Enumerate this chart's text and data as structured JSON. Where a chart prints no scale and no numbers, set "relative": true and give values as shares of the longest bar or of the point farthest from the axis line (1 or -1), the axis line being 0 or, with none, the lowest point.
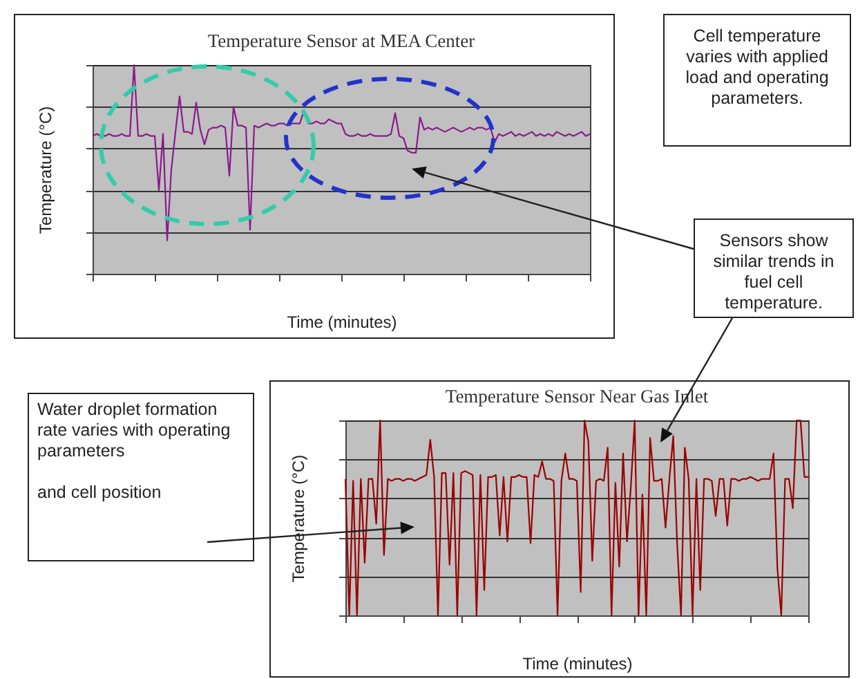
{
  "chart_data": [
    {
      "type": "line",
      "title": "Temperature Sensor at MEA Center",
      "xlabel": "Time (minutes)",
      "ylabel": "Temperature (°C)",
      "relative": true,
      "grid": "y",
      "tick_labels": false,
      "annotations": [
        "Cell temperature varies with applied load and operating parameters.",
        "Sensors show similar trends in fuel cell temperature."
      ],
      "categories": [
        null,
        null,
        null,
        null,
        null,
        null,
        null,
        null,
        null,
        null,
        null,
        null,
        null,
        null,
        null,
        null,
        null,
        null,
        null,
        null,
        null,
        null,
        null,
        null,
        null,
        null,
        null,
        null,
        null,
        null,
        null,
        null,
        null,
        null,
        null,
        null,
        null,
        null,
        null,
        null,
        null,
        null,
        null,
        null,
        null,
        null,
        null,
        null,
        null,
        null,
        null,
        null,
        null,
        null,
        null,
        null,
        null,
        null,
        null,
        null,
        null,
        null,
        null,
        null,
        null,
        null,
        null,
        null,
        null,
        null,
        null,
        null,
        null,
        null,
        null,
        null,
        null,
        null,
        null,
        null,
        null,
        null,
        null,
        null,
        null,
        null,
        null,
        null,
        null,
        null,
        null,
        null,
        null,
        null,
        null,
        null,
        null,
        null,
        null,
        null,
        null,
        null,
        null,
        null,
        null,
        null,
        null,
        null,
        null,
        null,
        null,
        null,
        null,
        null,
        null,
        null,
        null,
        null,
        null,
        null,
        null
      ],
      "series": [
        {
          "color": "#8b1a8b",
          "values": [
            0.66,
            0.67,
            0.66,
            0.66,
            0.67,
            0.66,
            0.66,
            0.67,
            0.66,
            0.66,
            1.0,
            0.66,
            0.66,
            0.67,
            0.66,
            0.66,
            0.4,
            0.67,
            0.16,
            0.5,
            0.68,
            0.85,
            0.68,
            0.68,
            0.67,
            0.82,
            0.69,
            0.62,
            0.69,
            0.7,
            0.7,
            0.71,
            0.7,
            0.47,
            0.8,
            0.71,
            0.71,
            0.7,
            0.21,
            0.71,
            0.7,
            0.71,
            0.72,
            0.71,
            0.71,
            0.72,
            0.72,
            0.71,
            0.72,
            0.72,
            0.72,
            0.78,
            0.72,
            0.72,
            0.73,
            0.72,
            0.72,
            0.74,
            0.73,
            0.72,
            0.72,
            0.67,
            0.66,
            0.66,
            0.67,
            0.66,
            0.66,
            0.67,
            0.66,
            0.66,
            0.66,
            0.66,
            0.67,
            0.77,
            0.66,
            0.65,
            0.59,
            0.58,
            0.58,
            0.75,
            0.69,
            0.7,
            0.69,
            0.7,
            0.69,
            0.68,
            0.69,
            0.7,
            0.69,
            0.68,
            0.69,
            0.7,
            0.69,
            0.7,
            0.7,
            0.69,
            0.7,
            0.63,
            0.67,
            0.66,
            0.67,
            0.68,
            0.66,
            0.67,
            0.66,
            0.67,
            0.68,
            0.66,
            0.67,
            0.66,
            0.67,
            0.66,
            0.68,
            0.67,
            0.66,
            0.67,
            0.66,
            0.67,
            0.68,
            0.66,
            0.67
          ]
        }
      ]
    },
    {
      "type": "line",
      "title": "Temperature Sensor Near Gas Inlet",
      "xlabel": "Time (minutes)",
      "ylabel": "Temperature (°C)",
      "relative": true,
      "grid": "y",
      "tick_labels": false,
      "annotations": [
        "Water droplet formation rate varies with operating parameters",
        "and cell position"
      ],
      "categories": [
        null,
        null,
        null,
        null,
        null,
        null,
        null,
        null,
        null,
        null,
        null,
        null,
        null,
        null,
        null,
        null,
        null,
        null,
        null,
        null,
        null,
        null,
        null,
        null,
        null,
        null,
        null,
        null,
        null,
        null,
        null,
        null,
        null,
        null,
        null,
        null,
        null,
        null,
        null,
        null,
        null,
        null,
        null,
        null,
        null,
        null,
        null,
        null,
        null,
        null,
        null,
        null,
        null,
        null,
        null,
        null,
        null,
        null,
        null,
        null,
        null,
        null,
        null,
        null,
        null,
        null,
        null,
        null,
        null,
        null,
        null,
        null,
        null,
        null,
        null,
        null,
        null,
        null,
        null,
        null,
        null,
        null,
        null,
        null,
        null,
        null,
        null,
        null,
        null,
        null,
        null,
        null,
        null,
        null,
        null,
        null,
        null,
        null,
        null,
        null,
        null,
        null,
        null,
        null,
        null,
        null,
        null,
        null,
        null,
        null,
        null,
        null,
        null,
        null,
        null,
        null,
        null,
        null,
        null,
        null,
        null
      ],
      "series": [
        {
          "color": "#9b0000",
          "values": [
            0.7,
            0,
            0.69,
            0,
            0.7,
            0.27,
            0.7,
            0.7,
            0.47,
            1.0,
            0.31,
            0.7,
            0.69,
            0.7,
            0.7,
            0.69,
            0.7,
            0.7,
            0.69,
            0.7,
            0.71,
            0.72,
            0.9,
            0.71,
            0,
            0.73,
            0.73,
            0.26,
            0.73,
            0,
            0.73,
            0.74,
            0.73,
            0.72,
            0,
            0.72,
            0.13,
            0.71,
            0.71,
            0.72,
            0.41,
            0.71,
            0.38,
            0.71,
            0.71,
            0.72,
            0.71,
            0.71,
            0.37,
            0.72,
            0.71,
            0.79,
            0.7,
            0.7,
            0.69,
            0,
            0.69,
            0.83,
            0.7,
            0.7,
            0.69,
            0.12,
            1.0,
            0.89,
            0.28,
            0.69,
            0.7,
            0.69,
            0.86,
            0,
            0.68,
            0.25,
            0.83,
            0.38,
            0.66,
            1.0,
            0,
            0.62,
            0,
            0.91,
            0.69,
            0.69,
            0.7,
            0.45,
            0.7,
            0.92,
            0.37,
            0,
            0.86,
            0.7,
            0,
            0.7,
            0.13,
            0.7,
            0.7,
            0.69,
            0.51,
            0.7,
            0.7,
            0.46,
            0.7,
            0.7,
            0.69,
            0.7,
            0.7,
            0.71,
            0.7,
            0.69,
            0.7,
            0.7,
            0.7,
            0.83,
            0.24,
            0,
            0.7,
            0.7,
            0.55,
            1.0,
            1.0,
            0.71,
            0.71
          ]
        }
      ]
    }
  ]
}
